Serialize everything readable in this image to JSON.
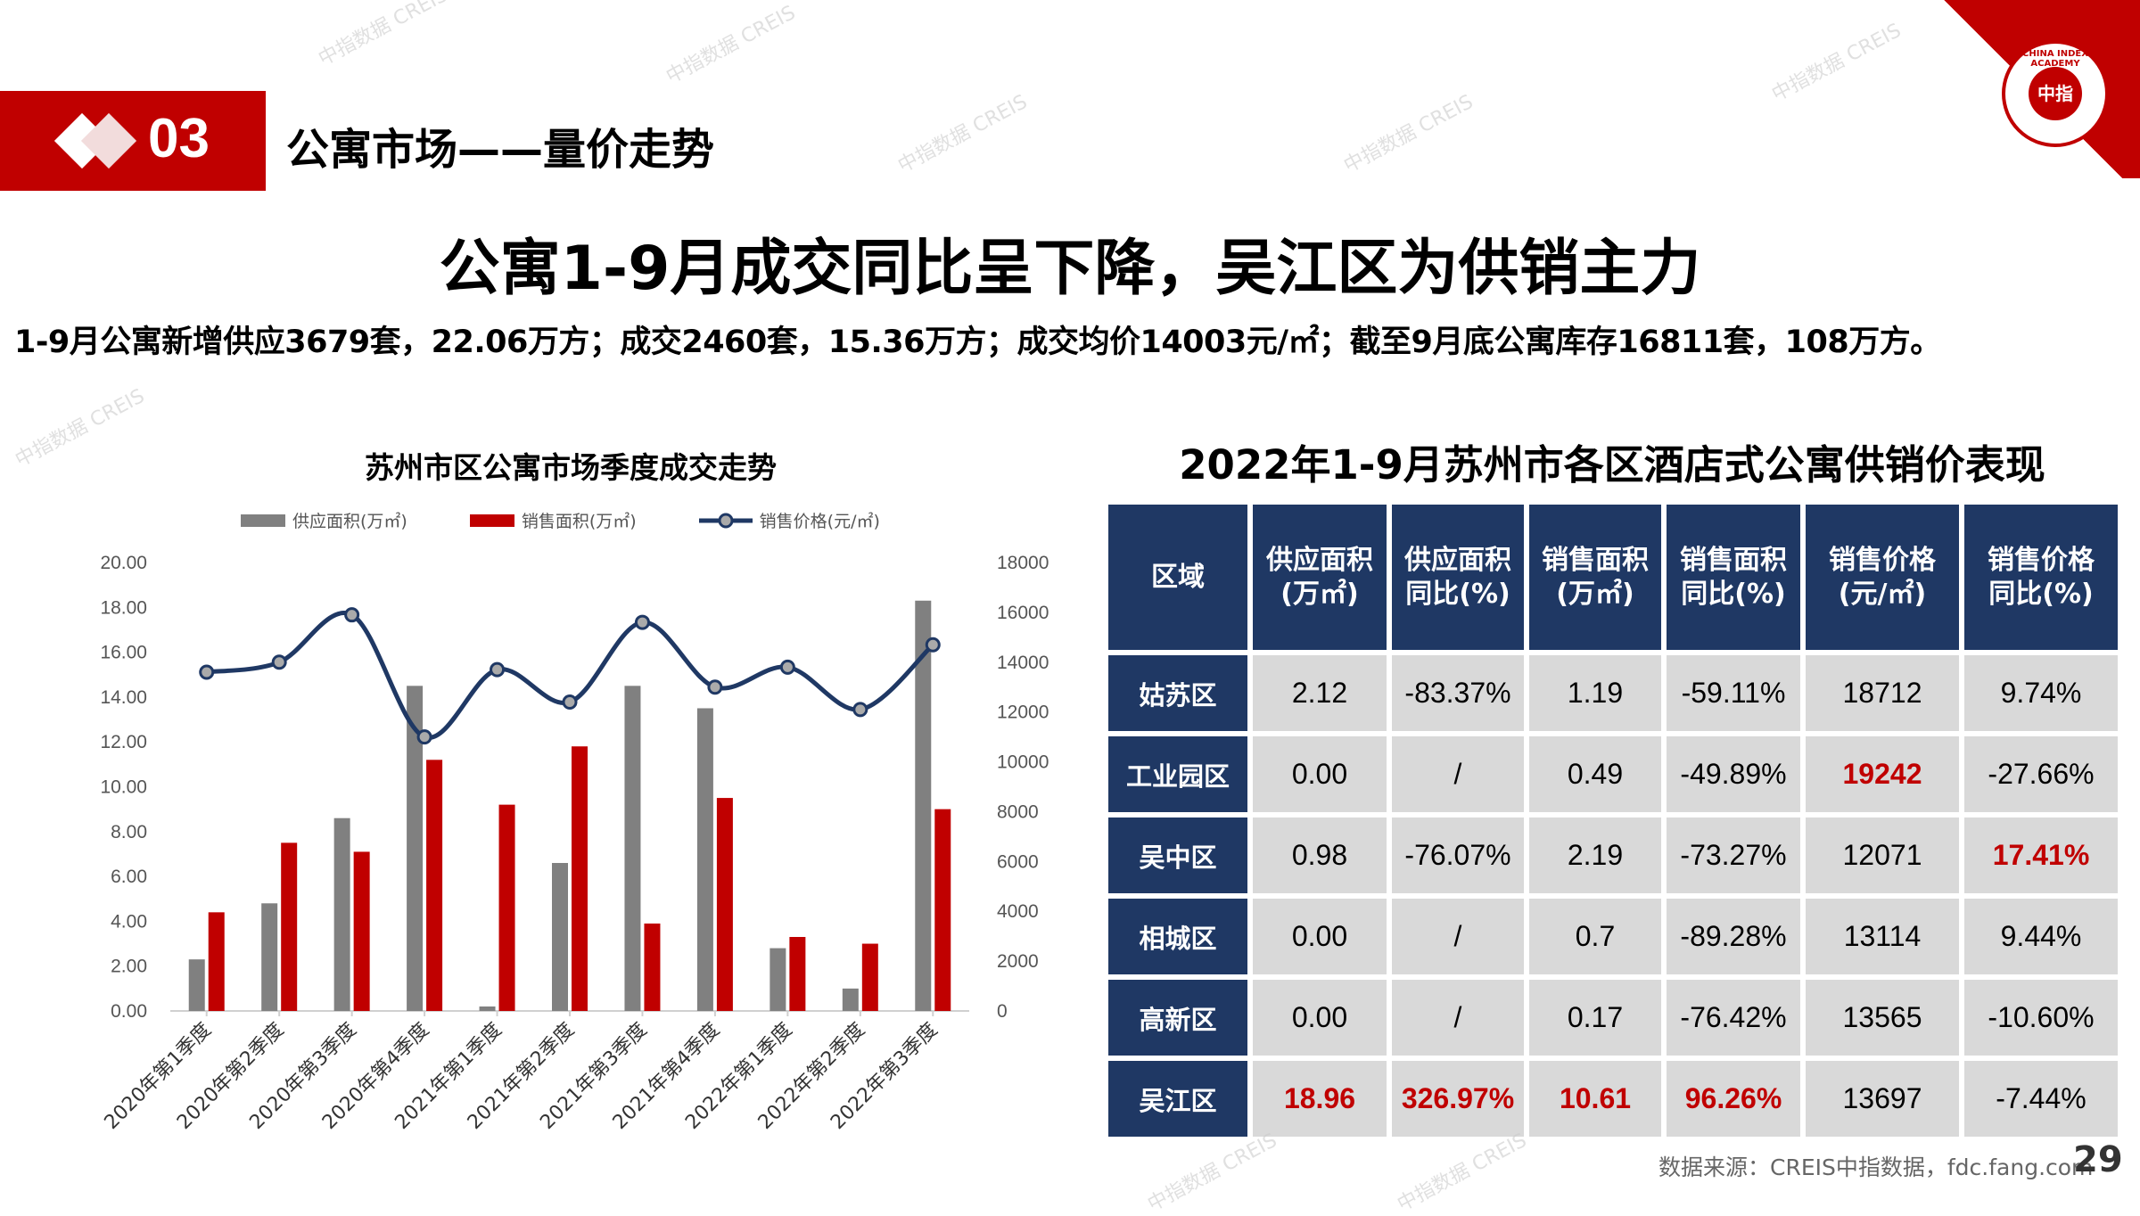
{
  "section": {
    "number": "03",
    "title": "公寓市场——量价走势"
  },
  "headline": "公寓1-9月成交同比呈下降，吴江区为供销主力",
  "subline": "1-9月公寓新增供应3679套，22.06万方；成交2460套，15.36万方；成交均价14003元/㎡；截至9月底公寓库存16811套，108万方。",
  "logo": {
    "text": "中指",
    "ring": "CHINA INDEX ACADEMY"
  },
  "watermark": "中指数据 CREIS",
  "chart_data": {
    "type": "bar",
    "title": "苏州市区公寓市场季度成交走势",
    "categories": [
      "2020年第1季度",
      "2020年第2季度",
      "2020年第3季度",
      "2020年第4季度",
      "2021年第1季度",
      "2021年第2季度",
      "2021年第3季度",
      "2021年第4季度",
      "2022年第1季度",
      "2022年第2季度",
      "2022年第3季度"
    ],
    "series": [
      {
        "name": "供应面积(万㎡)",
        "type": "bar",
        "axis": "left",
        "color": "#808080",
        "values": [
          2.3,
          4.8,
          8.6,
          14.5,
          0.2,
          6.6,
          14.5,
          13.5,
          2.8,
          1.0,
          18.3
        ]
      },
      {
        "name": "销售面积(万㎡)",
        "type": "bar",
        "axis": "left",
        "color": "#c00000",
        "values": [
          4.4,
          7.5,
          7.1,
          11.2,
          9.2,
          11.8,
          3.9,
          9.5,
          3.3,
          3.0,
          9.0
        ]
      },
      {
        "name": "销售价格(元/㎡)",
        "type": "line",
        "axis": "right",
        "color": "#1f3864",
        "values": [
          13600,
          14000,
          15900,
          11000,
          13700,
          12400,
          15600,
          13000,
          13800,
          12100,
          14700
        ]
      }
    ],
    "ylim": [
      0,
      20
    ],
    "y2lim": [
      0,
      18000
    ],
    "yticks": [
      "0.00",
      "2.00",
      "4.00",
      "6.00",
      "8.00",
      "10.00",
      "12.00",
      "14.00",
      "16.00",
      "18.00",
      "20.00"
    ],
    "y2ticks": [
      "0",
      "2000",
      "4000",
      "6000",
      "8000",
      "10000",
      "12000",
      "14000",
      "16000",
      "18000"
    ],
    "legend": "top"
  },
  "table": {
    "title": "2022年1-9月苏州市各区酒店式公寓供销价表现",
    "headers": [
      [
        "区域",
        ""
      ],
      [
        "供应面积",
        "(万㎡)"
      ],
      [
        "供应面积",
        "同比(%)"
      ],
      [
        "销售面积",
        "(万㎡)"
      ],
      [
        "销售面积",
        "同比(%)"
      ],
      [
        "销售价格",
        "(元/㎡)"
      ],
      [
        "销售价格",
        "同比(%)"
      ]
    ],
    "rows": [
      [
        "姑苏区",
        "2.12",
        "-83.37%",
        "1.19",
        "-59.11%",
        "18712",
        "9.74%"
      ],
      [
        "工业园区",
        "0.00",
        "/",
        "0.49",
        "-49.89%",
        "19242",
        "-27.66%"
      ],
      [
        "吴中区",
        "0.98",
        "-76.07%",
        "2.19",
        "-73.27%",
        "12071",
        "17.41%"
      ],
      [
        "相城区",
        "0.00",
        "/",
        "0.7",
        "-89.28%",
        "13114",
        "9.44%"
      ],
      [
        "高新区",
        "0.00",
        "/",
        "0.17",
        "-76.42%",
        "13565",
        "-10.60%"
      ],
      [
        "吴江区",
        "18.96",
        "326.97%",
        "10.61",
        "96.26%",
        "13697",
        "-7.44%"
      ]
    ],
    "highlights": [
      [
        1,
        5
      ],
      [
        2,
        6
      ],
      [
        5,
        1
      ],
      [
        5,
        2
      ],
      [
        5,
        3
      ],
      [
        5,
        4
      ]
    ]
  },
  "footer": {
    "source": "数据来源：CREIS中指数据，fdc.fang.com",
    "page": "29"
  }
}
